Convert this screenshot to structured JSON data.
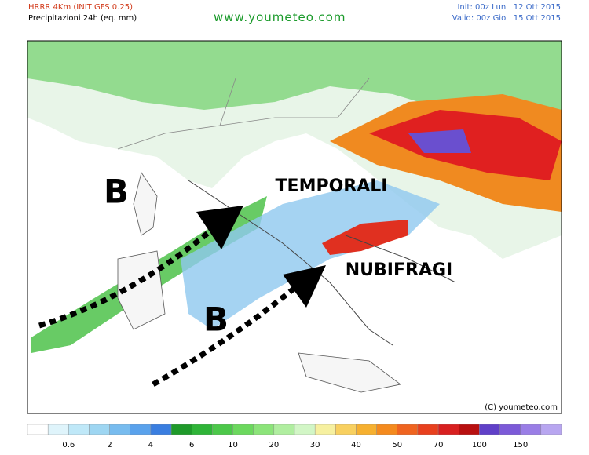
{
  "header": {
    "model": "HRRR 4Km (INIT GFS 0.25)",
    "field": "Precipitazioni 24h (eq. mm)",
    "site": "www.youmeteo.com",
    "init": "Init: 00z Lun   12 Ott 2015",
    "valid": "Valid: 00z Gio   15 Ott 2015"
  },
  "map": {
    "labels": [
      "B",
      "TEMPORALI",
      "B",
      "NUBIFRAGI"
    ],
    "copyright": "(C) youmeteo.com"
  },
  "legend": {
    "ticks": [
      "0.6",
      "2",
      "4",
      "6",
      "10",
      "20",
      "30",
      "40",
      "50",
      "70",
      "100",
      "150"
    ]
  }
}
